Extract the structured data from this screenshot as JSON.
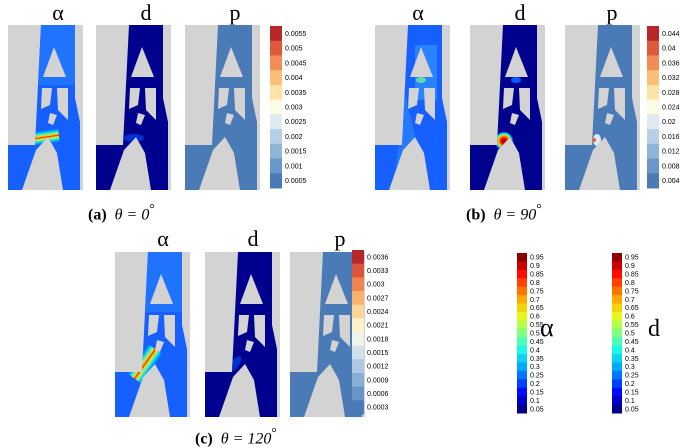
{
  "symbols": {
    "alpha": "α",
    "d": "d",
    "p": "p",
    "theta": "θ",
    "degree": "°"
  },
  "colormaps": {
    "jet_blue_red": [
      "#00008f",
      "#0000ff",
      "#0060ff",
      "#00bfff",
      "#20ffdf",
      "#80ff80",
      "#dfff20",
      "#ffbf00",
      "#ff6000",
      "#ff0000",
      "#8f0000"
    ],
    "p_scale": [
      "#4a7bb7",
      "#6b97c8",
      "#90b4d8",
      "#b8d0e6",
      "#dfeaf0",
      "#fdfde6",
      "#fde3a8",
      "#fbbf78",
      "#f28d55",
      "#df5a3c",
      "#b8262a"
    ]
  },
  "panels": [
    {
      "id": "a",
      "label": "(a)",
      "theta_text": "θ = 0",
      "p_ticks": [
        "0.0055",
        "0.005",
        "0.0045",
        "0.004",
        "0.0035",
        "0.003",
        "0.0025",
        "0.002",
        "0.0015",
        "0.001",
        "0.0005"
      ]
    },
    {
      "id": "b",
      "label": "(b)",
      "theta_text": "θ = 90",
      "p_ticks": [
        "0.044",
        "0.04",
        "0.036",
        "0.032",
        "0.028",
        "0.024",
        "0.02",
        "0.016",
        "0.012",
        "0.008",
        "0.004"
      ]
    },
    {
      "id": "c",
      "label": "(c)",
      "theta_text": "θ = 120",
      "p_ticks": [
        "0.0036",
        "0.0033",
        "0.003",
        "0.0027",
        "0.0024",
        "0.0021",
        "0.0018",
        "0.0015",
        "0.0012",
        "0.0009",
        "0.0006",
        "0.0003"
      ]
    }
  ],
  "legend_alpha": {
    "symbol": "α",
    "ticks": [
      "0.95",
      "0.9",
      "0.85",
      "0.8",
      "0.75",
      "0.7",
      "0.65",
      "0.6",
      "0.55",
      "0.5",
      "0.45",
      "0.4",
      "0.35",
      "0.3",
      "0.25",
      "0.2",
      "0.15",
      "0.1",
      "0.05"
    ]
  },
  "legend_d": {
    "symbol": "d",
    "ticks": [
      "0.95",
      "0.9",
      "0.85",
      "0.8",
      "0.75",
      "0.7",
      "0.65",
      "0.6",
      "0.55",
      "0.5",
      "0.45",
      "0.4",
      "0.35",
      "0.3",
      "0.25",
      "0.2",
      "0.15",
      "0.1",
      "0.05"
    ]
  }
}
